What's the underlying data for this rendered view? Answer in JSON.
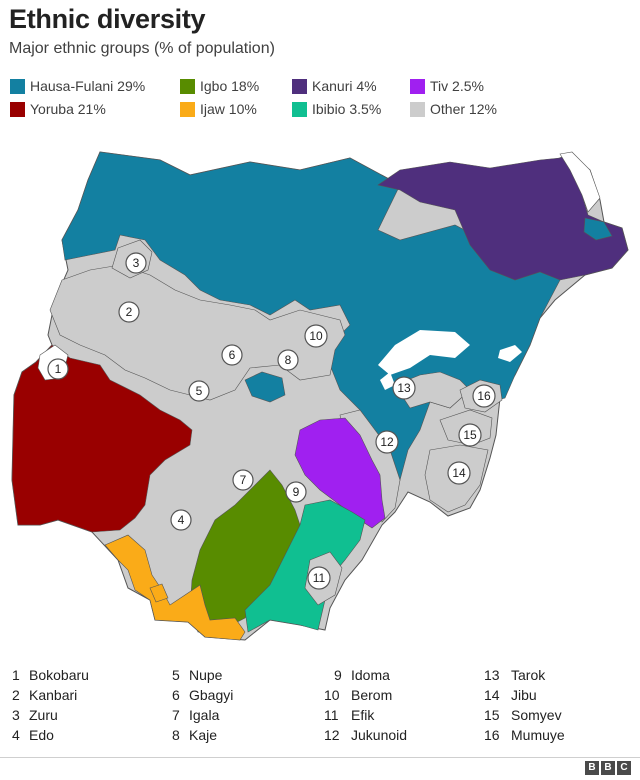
{
  "title": "Ethnic diversity",
  "subtitle": "Major ethnic groups (% of population)",
  "legend": [
    {
      "label": "Hausa-Fulani 29%",
      "color": "#1380A1"
    },
    {
      "label": "Igbo 18%",
      "color": "#588C00"
    },
    {
      "label": "Kanuri 4%",
      "color": "#4F2F7D"
    },
    {
      "label": "Tiv 2.5%",
      "color": "#A020F0"
    },
    {
      "label": "Yoruba 21%",
      "color": "#990000"
    },
    {
      "label": "Ijaw 10%",
      "color": "#FAAB18"
    },
    {
      "label": "Ibibio 3.5%",
      "color": "#10BF91"
    },
    {
      "label": "Other 12%",
      "color": "#CCCCCC"
    }
  ],
  "map_labels": [
    "1",
    "2",
    "3",
    "4",
    "5",
    "6",
    "7",
    "8",
    "9",
    "10",
    "11",
    "12",
    "13",
    "14",
    "15",
    "16"
  ],
  "key": [
    {
      "num": "1",
      "name": "Bokobaru"
    },
    {
      "num": "2",
      "name": "Kanbari"
    },
    {
      "num": "3",
      "name": "Zuru"
    },
    {
      "num": "4",
      "name": "Edo"
    },
    {
      "num": "5",
      "name": "Nupe"
    },
    {
      "num": "6",
      "name": "Gbagyi"
    },
    {
      "num": "7",
      "name": "Igala"
    },
    {
      "num": "8",
      "name": "Kaje"
    },
    {
      "num": "9",
      "name": "Idoma"
    },
    {
      "num": "10",
      "name": "Berom"
    },
    {
      "num": "11",
      "name": "Efik"
    },
    {
      "num": "12",
      "name": "Jukunoid"
    },
    {
      "num": "13",
      "name": "Tarok"
    },
    {
      "num": "14",
      "name": "Jibu"
    },
    {
      "num": "15",
      "name": "Somyev"
    },
    {
      "num": "16",
      "name": "Mumuye"
    }
  ],
  "footer": {
    "logo": [
      "B",
      "B",
      "C"
    ]
  }
}
